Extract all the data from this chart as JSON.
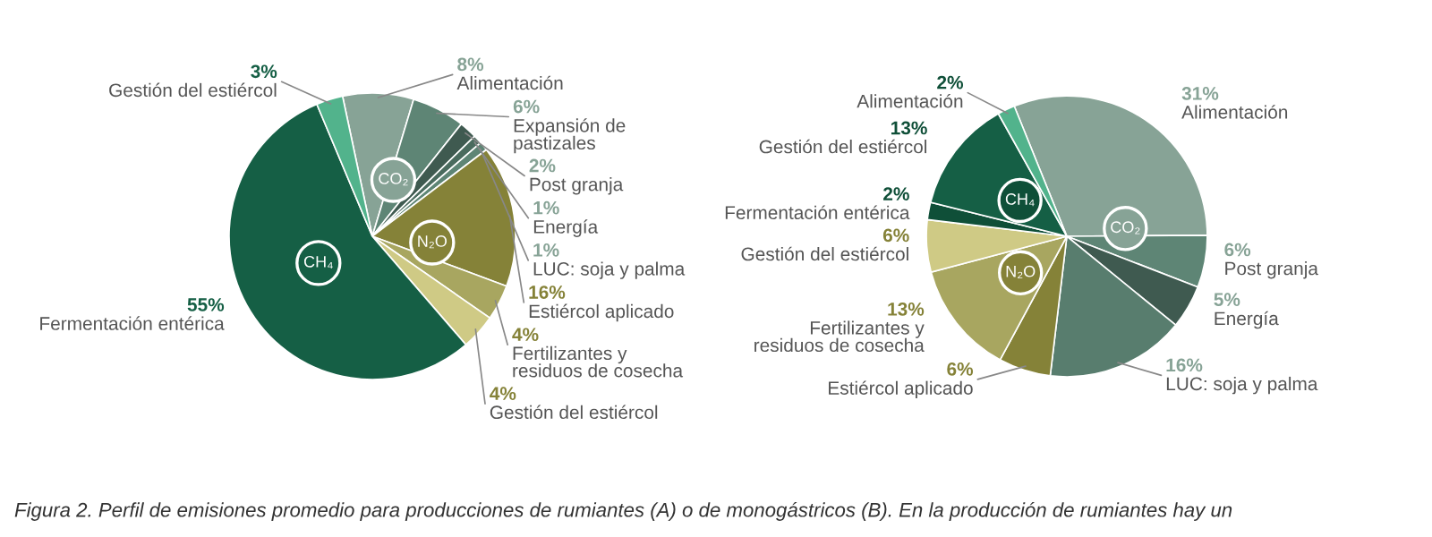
{
  "chart_data": [
    {
      "type": "pie",
      "categories": [
        "Alimentación",
        "Expansión de pastizales",
        "Post granja",
        "Energía",
        "LUC: soja y palma",
        "Estiércol aplicado",
        "Fertilizantes y residuos de cosecha",
        "Gestión del estiércol",
        "Fermentación entérica",
        "Gestión del estiércol"
      ],
      "values": [
        8,
        6,
        2,
        1,
        1,
        16,
        4,
        4,
        55,
        3
      ],
      "colors": [
        "#87a396",
        "#5e8575",
        "#3f5a50",
        "#4a6b5e",
        "#5e8575",
        "#858238",
        "#a8a660",
        "#cfca85",
        "#155f45",
        "#52b38c"
      ],
      "value_labels": [
        "8%",
        "6%",
        "2%",
        "1%",
        "1%",
        "16%",
        "4%",
        "4%",
        "55%",
        "3%"
      ],
      "annotations": [
        {
          "text": "CO₂",
          "x": "Alimentación"
        },
        {
          "text": "N₂O",
          "x": "Estiércol aplicado"
        },
        {
          "text": "CH₄",
          "x": "Fermentación entérica"
        },
        "Figura 2. Perfil de emisiones promedio para producciones de rumiantes (A) o de monogástricos (B). En la producción de rumiantes hay un"
      ]
    },
    {
      "type": "pie",
      "categories": [
        "Alimentación",
        "Post granja",
        "Energía",
        "LUC: soja y palma",
        "Estiércol aplicado",
        "Fertilizantes y residuos de cosecha",
        "Gestión del estiércol",
        "Fermentación entérica",
        "Gestión del estiércol",
        "Alimentación"
      ],
      "values": [
        31,
        6,
        5,
        16,
        6,
        13,
        6,
        2,
        13,
        2
      ],
      "colors": [
        "#87a396",
        "#5e8575",
        "#3f5a50",
        "#587d6e",
        "#858238",
        "#a8a660",
        "#cfca85",
        "#0f4f38",
        "#155f45",
        "#52b38c"
      ],
      "value_labels": [
        "31%",
        "6%",
        "5%",
        "16%",
        "6%",
        "13%",
        "6%",
        "2%",
        "13%",
        "2%"
      ],
      "annotations": [
        {
          "text": "CO₂",
          "x": "Alimentación"
        },
        {
          "text": "N₂O",
          "x": "Estiércol aplicado"
        },
        {
          "text": "CH₄",
          "x": "Fermentación entérica"
        }
      ]
    }
  ]
}
